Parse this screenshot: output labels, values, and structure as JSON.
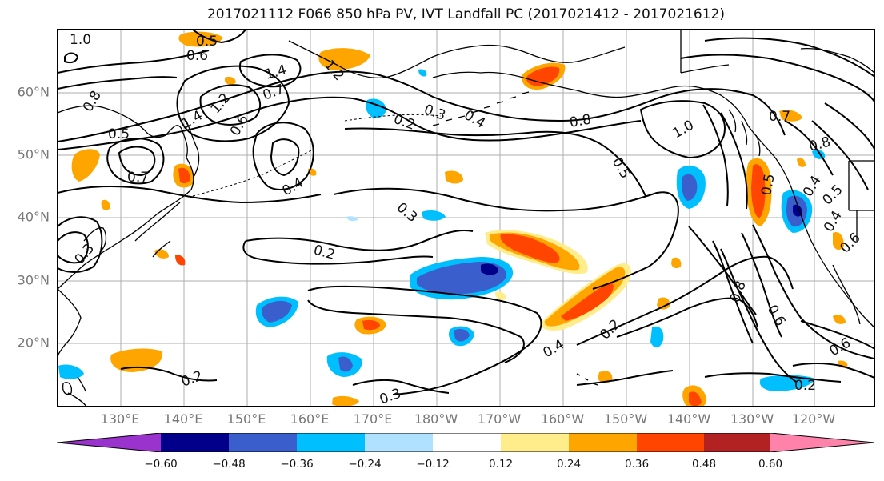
{
  "title": "2017021112 F066 850 hPa PV, IVT Landfall PC (2017021412 - 2017021612)",
  "map": {
    "projection": "cylindrical",
    "lat_labels": [
      "60°N",
      "50°N",
      "40°N",
      "30°N",
      "20°N"
    ],
    "lon_labels": [
      "130°E",
      "140°E",
      "150°E",
      "160°E",
      "170°E",
      "180°W",
      "170°W",
      "160°W",
      "150°W",
      "140°W",
      "130°W",
      "120°W"
    ],
    "contour_labels": [
      "1.0",
      "0.5",
      "0.6",
      "1.2",
      "1.4",
      "1.4",
      "1.2",
      "0.7",
      "0.8",
      "0.5",
      "0.7",
      "0.6",
      "0.2",
      "0.3",
      "0.4",
      "0.8",
      "1.0",
      "0.5",
      "0.4",
      "0.3",
      "0.2",
      "0.2",
      "0.4",
      "0.2",
      "0.3",
      "0.8",
      "0.6",
      "0.6",
      "0.2",
      "0.5",
      "0.4",
      "0.5",
      "0.4",
      "0.8",
      "0.7",
      "0.6",
      "0.3"
    ],
    "grid_color": "#999999",
    "land_outline_color": "#000000"
  },
  "colorbar": {
    "colors": [
      "#9a32cd",
      "#00008b",
      "#3a5fcd",
      "#00bfff",
      "#b0e2ff",
      "#ffffff",
      "#ffec8b",
      "#ffa500",
      "#ff4500",
      "#b22222",
      "#ff82ab"
    ],
    "tick_labels": [
      "−0.60",
      "−0.48",
      "−0.36",
      "−0.24",
      "−0.12",
      "0.12",
      "0.24",
      "0.36",
      "0.48",
      "0.60"
    ],
    "extend": "both"
  }
}
